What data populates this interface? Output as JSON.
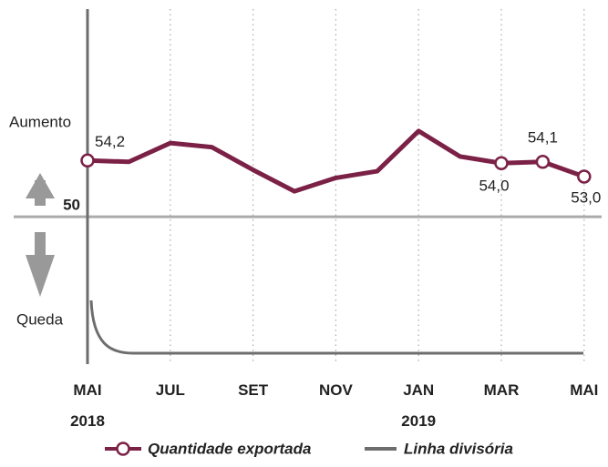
{
  "chart_data": {
    "type": "line",
    "categories": [
      "MAI\n2018",
      null,
      "JUL",
      null,
      "SET",
      null,
      "NOV",
      null,
      "JAN\n2019",
      null,
      "MAR",
      null,
      "MAI"
    ],
    "series": [
      {
        "name": "Quantidade exportada",
        "color": "#7b2146",
        "values": [
          54.2,
          54.1,
          55.5,
          55.2,
          53.5,
          51.9,
          52.9,
          53.4,
          56.4,
          54.5,
          54.0,
          54.1,
          53.0
        ],
        "value_labels": [
          "54,2",
          null,
          null,
          null,
          null,
          null,
          null,
          null,
          null,
          null,
          "54,0",
          "54,1",
          "53,0"
        ]
      },
      {
        "name": "Linha divisória",
        "color": "#6d6d6d"
      }
    ],
    "ylim": [
      39,
      65.5
    ],
    "yticks": [
      50
    ],
    "annotations": [
      "Aumento",
      "Queda"
    ]
  }
}
